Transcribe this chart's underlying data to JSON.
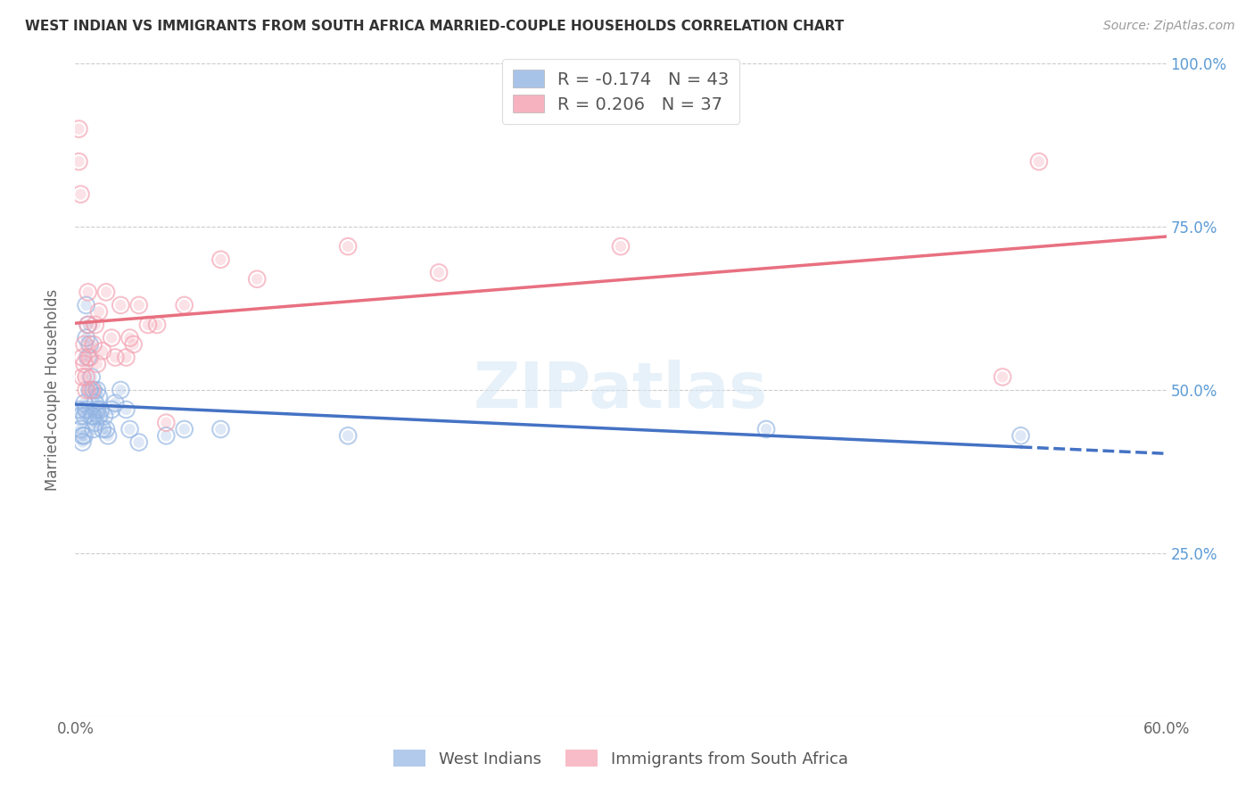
{
  "title": "WEST INDIAN VS IMMIGRANTS FROM SOUTH AFRICA MARRIED-COUPLE HOUSEHOLDS CORRELATION CHART",
  "source": "Source: ZipAtlas.com",
  "ylabel": "Married-couple Households",
  "xlim": [
    0.0,
    0.6
  ],
  "ylim": [
    0.0,
    1.0
  ],
  "xticks": [
    0.0,
    0.1,
    0.2,
    0.3,
    0.4,
    0.5,
    0.6
  ],
  "xtick_labels": [
    "0.0%",
    "",
    "",
    "",
    "",
    "",
    "60.0%"
  ],
  "yticks": [
    0.0,
    0.25,
    0.5,
    0.75,
    1.0
  ],
  "ytick_labels_right": [
    "",
    "25.0%",
    "50.0%",
    "75.0%",
    "100.0%"
  ],
  "blue_R": -0.174,
  "blue_N": 43,
  "pink_R": 0.206,
  "pink_N": 37,
  "blue_color": "#92B4E3",
  "pink_color": "#F4A0B0",
  "blue_line_color": "#4472C4",
  "pink_line_color": "#E87080",
  "right_tick_color": "#5B9BD5",
  "legend_label_blue": "West Indians",
  "legend_label_pink": "Immigrants from South Africa",
  "blue_x": [
    0.002,
    0.003,
    0.003,
    0.004,
    0.004,
    0.005,
    0.005,
    0.005,
    0.006,
    0.006,
    0.006,
    0.007,
    0.007,
    0.008,
    0.008,
    0.009,
    0.009,
    0.01,
    0.01,
    0.01,
    0.011,
    0.011,
    0.012,
    0.012,
    0.013,
    0.013,
    0.014,
    0.015,
    0.016,
    0.017,
    0.018,
    0.02,
    0.022,
    0.025,
    0.028,
    0.03,
    0.035,
    0.05,
    0.06,
    0.08,
    0.15,
    0.38,
    0.52
  ],
  "blue_y": [
    0.47,
    0.46,
    0.44,
    0.43,
    0.42,
    0.48,
    0.46,
    0.43,
    0.63,
    0.58,
    0.47,
    0.6,
    0.55,
    0.57,
    0.5,
    0.52,
    0.46,
    0.5,
    0.46,
    0.44,
    0.48,
    0.45,
    0.5,
    0.47,
    0.49,
    0.46,
    0.47,
    0.44,
    0.46,
    0.44,
    0.43,
    0.47,
    0.48,
    0.5,
    0.47,
    0.44,
    0.42,
    0.43,
    0.44,
    0.44,
    0.43,
    0.44,
    0.43
  ],
  "pink_x": [
    0.002,
    0.002,
    0.003,
    0.004,
    0.004,
    0.005,
    0.005,
    0.006,
    0.006,
    0.007,
    0.007,
    0.008,
    0.009,
    0.01,
    0.011,
    0.012,
    0.013,
    0.015,
    0.017,
    0.02,
    0.022,
    0.025,
    0.028,
    0.03,
    0.032,
    0.035,
    0.04,
    0.045,
    0.05,
    0.06,
    0.08,
    0.1,
    0.15,
    0.2,
    0.3,
    0.51,
    0.53
  ],
  "pink_y": [
    0.9,
    0.85,
    0.8,
    0.55,
    0.52,
    0.57,
    0.54,
    0.52,
    0.5,
    0.65,
    0.6,
    0.55,
    0.5,
    0.57,
    0.6,
    0.54,
    0.62,
    0.56,
    0.65,
    0.58,
    0.55,
    0.63,
    0.55,
    0.58,
    0.57,
    0.63,
    0.6,
    0.6,
    0.45,
    0.63,
    0.7,
    0.67,
    0.72,
    0.68,
    0.72,
    0.52,
    0.85
  ],
  "background_color": "#ffffff",
  "grid_color": "#cccccc"
}
